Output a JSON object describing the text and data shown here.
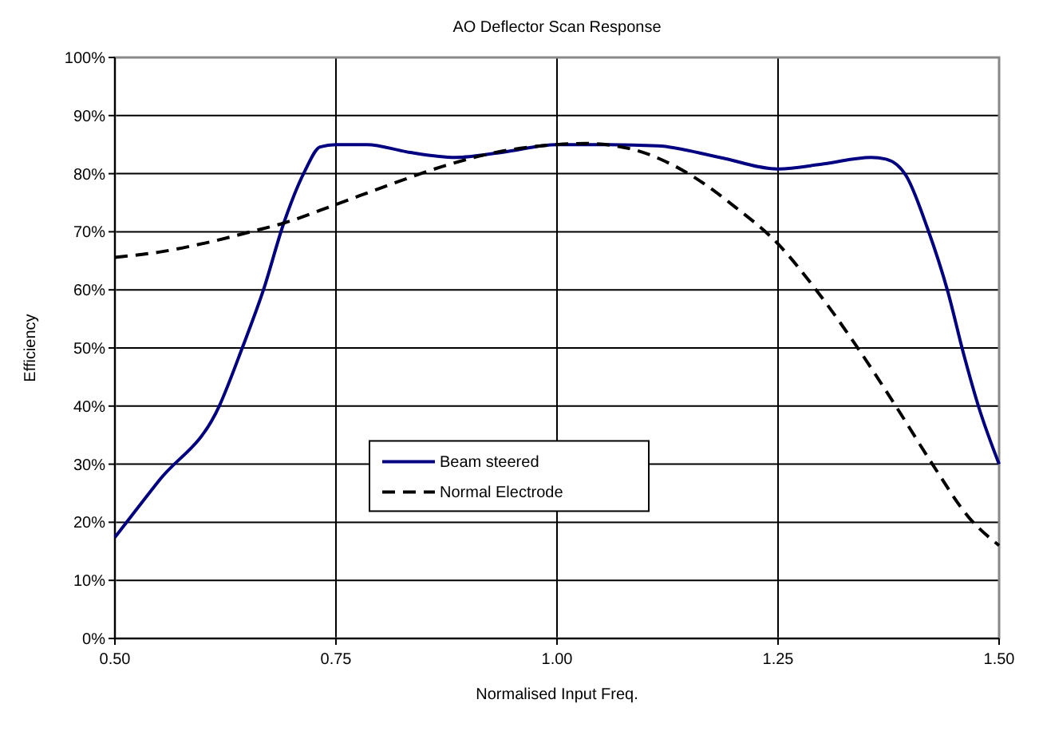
{
  "chart_data": {
    "type": "line",
    "title": "AO Deflector Scan Response",
    "xlabel": "Normalised Input Freq.",
    "ylabel": "Efficiency",
    "xlim": [
      0.5,
      1.5
    ],
    "xticks": [
      {
        "value": 0.5,
        "label": "0.50"
      },
      {
        "value": 0.75,
        "label": "0.75"
      },
      {
        "value": 1,
        "label": "1.00"
      },
      {
        "value": 1.25,
        "label": "1.25"
      },
      {
        "value": 1.5,
        "label": "1.50"
      }
    ],
    "ylim": [
      0,
      100
    ],
    "yticks": [
      {
        "value": 0,
        "label": "0%"
      },
      {
        "value": 10,
        "label": "10%"
      },
      {
        "value": 20,
        "label": "20%"
      },
      {
        "value": 30,
        "label": "30%"
      },
      {
        "value": 40,
        "label": "40%"
      },
      {
        "value": 50,
        "label": "50%"
      },
      {
        "value": 60,
        "label": "60%"
      },
      {
        "value": 70,
        "label": "70%"
      },
      {
        "value": 80,
        "label": "80%"
      },
      {
        "value": 90,
        "label": "90%"
      },
      {
        "value": 100,
        "label": "100%"
      }
    ],
    "grid": true,
    "legend": "bottom",
    "marker": "none",
    "series": [
      {
        "name": "Beam steered",
        "color": "#000080",
        "line_style": "solid",
        "x": [
          0.5,
          0.55,
          0.618,
          0.644,
          0.668,
          0.691,
          0.715,
          0.732,
          0.75,
          0.785,
          0.832,
          0.885,
          0.939,
          1.0,
          1.056,
          1.114,
          1.184,
          1.25,
          1.302,
          1.355,
          1.372,
          1.395,
          1.419,
          1.442,
          1.46,
          1.477,
          1.5
        ],
        "values": [
          17.4,
          27.2,
          40,
          50,
          60,
          71.5,
          80.5,
          84.6,
          85,
          85,
          83.7,
          82.8,
          83.7,
          85,
          85,
          84.8,
          82.8,
          80.8,
          81.7,
          82.8,
          82.5,
          79.6,
          70.6,
          59.7,
          48.9,
          39.8,
          30
        ]
      },
      {
        "name": "Normal Electrode",
        "color": "#000000",
        "line_style": "dashed",
        "x": [
          0.5,
          0.55,
          0.609,
          0.656,
          0.691,
          0.75,
          0.809,
          0.874,
          0.932,
          1.0,
          1.032,
          1.085,
          1.143,
          1.202,
          1.25,
          1.29,
          1.337,
          1.384,
          1.425,
          1.466,
          1.5
        ],
        "values": [
          65.6,
          66.5,
          68.3,
          70.1,
          71.5,
          74.7,
          78,
          81.4,
          83.7,
          85,
          85.2,
          84.2,
          80.5,
          74.2,
          67.9,
          60.6,
          50.7,
          39.8,
          29.9,
          20.8,
          16
        ]
      }
    ]
  }
}
